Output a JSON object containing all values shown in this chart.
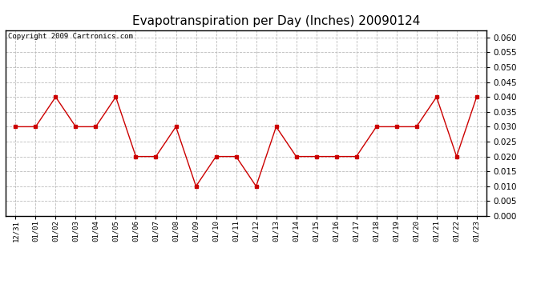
{
  "title": "Evapotranspiration per Day (Inches) 20090124",
  "copyright_text": "Copyright 2009 Cartronics.com",
  "x_labels": [
    "12/31",
    "01/01",
    "01/02",
    "01/03",
    "01/04",
    "01/05",
    "01/06",
    "01/07",
    "01/08",
    "01/09",
    "01/10",
    "01/11",
    "01/12",
    "01/13",
    "01/14",
    "01/15",
    "01/16",
    "01/17",
    "01/18",
    "01/19",
    "01/20",
    "01/21",
    "01/22",
    "01/23"
  ],
  "y_values": [
    0.03,
    0.03,
    0.04,
    0.03,
    0.03,
    0.04,
    0.02,
    0.02,
    0.03,
    0.01,
    0.02,
    0.02,
    0.01,
    0.03,
    0.02,
    0.02,
    0.02,
    0.02,
    0.03,
    0.03,
    0.03,
    0.04,
    0.02,
    0.04
  ],
  "line_color": "#cc0000",
  "marker": "s",
  "marker_size": 3,
  "ylim": [
    0.0,
    0.0625
  ],
  "ytick_min": 0.0,
  "ytick_max": 0.06,
  "ytick_step": 0.005,
  "grid_color": "#bbbbbb",
  "bg_color": "#ffffff",
  "title_fontsize": 11,
  "copyright_fontsize": 6.5
}
